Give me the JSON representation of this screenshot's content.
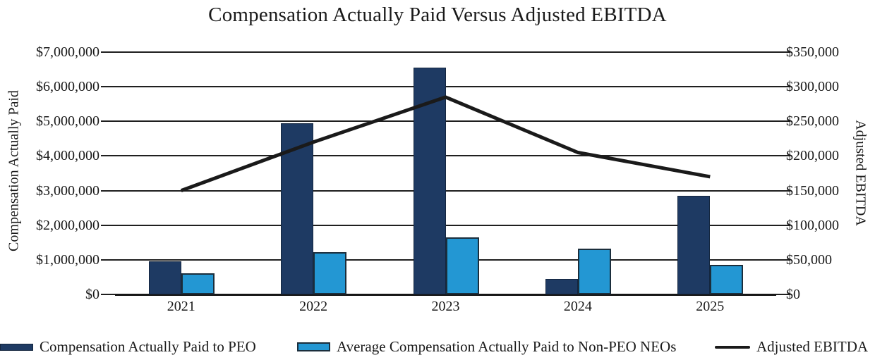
{
  "title": "Compensation Actually Paid Versus Adjusted EBITDA",
  "left_axis": {
    "label": "Compensation Actually Paid",
    "tick_labels": [
      "$7,000,000",
      "$6,000,000",
      "$5,000,000",
      "$4,000,000",
      "$3,000,000",
      "$2,000,000",
      "$1,000,000",
      "$0"
    ],
    "max": 7000000,
    "step": 1000000
  },
  "right_axis": {
    "label": "Adjusted EBITDA",
    "tick_labels": [
      "$350,000",
      "$300,000",
      "$250,000",
      "$200,000",
      "$150,000",
      "$100,000",
      "$50,000",
      "$0"
    ],
    "max": 350000,
    "step": 50000
  },
  "legend": {
    "items": [
      {
        "label": "Compensation Actually Paid to PEO",
        "type": "bar",
        "color": "#1e3a63"
      },
      {
        "label": "Average Compensation Actually Paid to Non-PEO NEOs",
        "type": "bar",
        "color": "#2397d3"
      },
      {
        "label": "Adjusted EBITDA",
        "type": "line",
        "color": "#1a1a1a"
      }
    ]
  },
  "colors": {
    "peo_bar": "#1e3a63",
    "neo_bar": "#2397d3",
    "ebitda_line": "#1a1a1a",
    "gridline": "#1f1f1f"
  },
  "chart_data": {
    "type": "bar",
    "subtype": "grouped-bars-with-line-overlay",
    "title": "Compensation Actually Paid Versus Adjusted EBITDA",
    "categories": [
      "2021",
      "2022",
      "2023",
      "2024",
      "2025"
    ],
    "series": [
      {
        "name": "Compensation Actually Paid to PEO",
        "type": "bar",
        "axis": "left",
        "color": "#1e3a63",
        "values": [
          950000,
          4950000,
          6550000,
          440000,
          2840000
        ]
      },
      {
        "name": "Average Compensation Actually Paid to Non-PEO NEOs",
        "type": "bar",
        "axis": "left",
        "color": "#2397d3",
        "values": [
          610000,
          1220000,
          1650000,
          1320000,
          860000
        ]
      },
      {
        "name": "Adjusted EBITDA",
        "type": "line",
        "axis": "right",
        "color": "#1a1a1a",
        "values": [
          150000,
          220000,
          285000,
          205000,
          170000
        ]
      }
    ],
    "ylabel_left": "Compensation Actually Paid",
    "ylabel_right": "Adjusted EBITDA",
    "ylim_left": [
      0,
      7000000
    ],
    "ylim_right": [
      0,
      350000
    ],
    "grid": true,
    "legend_position": "bottom"
  }
}
